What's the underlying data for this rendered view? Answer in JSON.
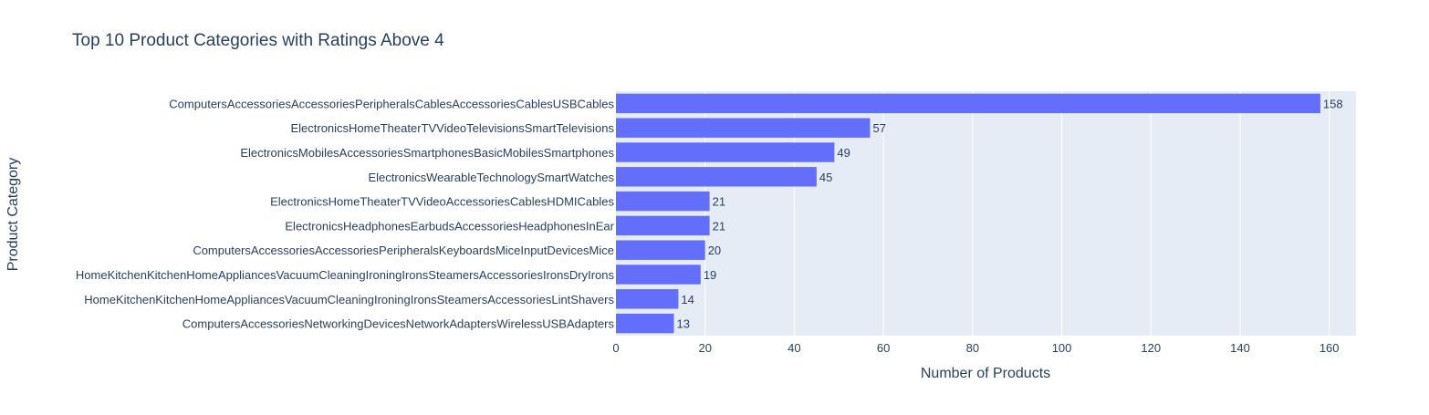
{
  "chart_data": {
    "type": "bar",
    "orientation": "horizontal",
    "title": "Top 10 Product Categories with Ratings Above 4",
    "xlabel": "Number of Products",
    "ylabel": "Product Category",
    "xlim": [
      0,
      166
    ],
    "xticks": [
      0,
      20,
      40,
      60,
      80,
      100,
      120,
      140,
      160
    ],
    "grid": true,
    "legend": "none",
    "categories": [
      "ComputersAccessoriesAccessoriesPeripheralsCablesAccessoriesCablesUSBCables",
      "ElectronicsHomeTheaterTVVideoTelevisionsSmartTelevisions",
      "ElectronicsMobilesAccessoriesSmartphonesBasicMobilesSmartphones",
      "ElectronicsWearableTechnologySmartWatches",
      "ElectronicsHomeTheaterTVVideoAccessoriesCablesHDMICables",
      "ElectronicsHeadphonesEarbudsAccessoriesHeadphonesInEar",
      "ComputersAccessoriesAccessoriesPeripheralsKeyboardsMiceInputDevicesMice",
      "HomeKitchenKitchenHomeAppliancesVacuumCleaningIroningIronsSteamersAccessoriesIronsDryIrons",
      "HomeKitchenKitchenHomeAppliancesVacuumCleaningIroningIronsSteamersAccessoriesLintShavers",
      "ComputersAccessoriesNetworkingDevicesNetworkAdaptersWirelessUSBAdapters"
    ],
    "values": [
      158,
      57,
      49,
      45,
      21,
      21,
      20,
      19,
      14,
      13
    ],
    "colors": {
      "bar": "#636efa",
      "plot_background": "#e5ecf6",
      "grid": "#ffffff",
      "text": "#2a3f5f",
      "title": "#2a3f5f"
    }
  }
}
